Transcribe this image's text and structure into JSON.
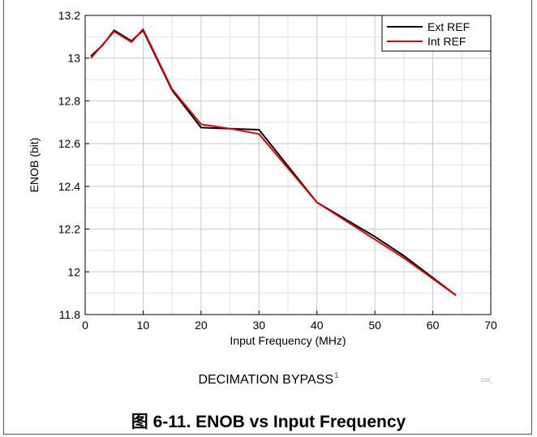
{
  "chart_data": {
    "type": "line",
    "title": "",
    "xlabel": "Input Frequency (MHz)",
    "ylabel": "ENOB (bit)",
    "xlim": [
      0,
      70
    ],
    "ylim": [
      11.8,
      13.2
    ],
    "xticks": [
      0,
      10,
      20,
      30,
      40,
      50,
      60,
      70
    ],
    "yticks": [
      11.8,
      12,
      12.2,
      12.4,
      12.6,
      12.8,
      13,
      13.2
    ],
    "xtick_labels": [
      "0",
      "10",
      "20",
      "30",
      "40",
      "50",
      "60",
      "70"
    ],
    "ytick_labels": [
      "11.8",
      "12",
      "12.2",
      "12.4",
      "12.6",
      "12.8",
      "13",
      "13.2"
    ],
    "grid": true,
    "legend_position": "top-right",
    "series": [
      {
        "name": "Ext REF",
        "color": "#000000",
        "x": [
          1,
          3,
          5,
          8,
          10,
          15,
          20,
          25,
          30,
          40,
          50,
          55,
          64
        ],
        "y": [
          13.01,
          13.06,
          13.13,
          13.08,
          13.13,
          12.85,
          12.675,
          12.67,
          12.665,
          12.325,
          12.165,
          12.075,
          11.89
        ]
      },
      {
        "name": "Int REF",
        "color": "#e00000",
        "x": [
          1,
          5,
          8,
          10,
          15,
          20,
          25,
          30,
          35,
          40,
          55,
          64
        ],
        "y": [
          13.0,
          13.125,
          13.075,
          13.135,
          12.855,
          12.69,
          12.67,
          12.645,
          12.485,
          12.325,
          12.065,
          11.89
        ]
      }
    ]
  },
  "subtitle": {
    "text": "DECIMATION BYPASS",
    "note": "1"
  },
  "caption": "图 6-11. ENOB vs Input Frequency",
  "figure_code": "D15_"
}
